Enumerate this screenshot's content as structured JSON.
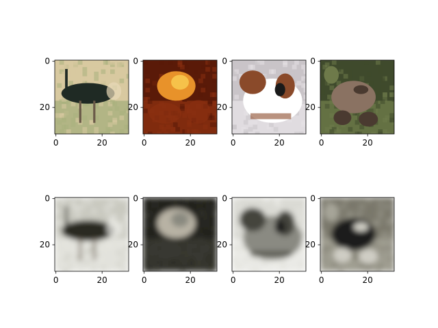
{
  "chart_data": {
    "type": "image-grid",
    "rows": 2,
    "cols": 4,
    "axes": {
      "xlim": [
        -0.5,
        31.5
      ],
      "ylim": [
        31.5,
        -0.5
      ],
      "xticks": [
        0,
        20
      ],
      "yticks": [
        0,
        20
      ],
      "xtick_labels": [
        "0",
        "20"
      ],
      "ytick_labels": [
        "0",
        "20"
      ]
    },
    "panels": [
      {
        "row": 0,
        "col": 0,
        "kind": "original",
        "subject": "ostrich",
        "palette": {
          "bg": "#d8c9a0",
          "bg2": "#a9b07e",
          "body": "#1f2a24",
          "accent": "#e8d8b8"
        }
      },
      {
        "row": 0,
        "col": 1,
        "kind": "original",
        "subject": "flower",
        "palette": {
          "bg": "#5a1a08",
          "bg2": "#8a2f10",
          "body": "#e8922a",
          "accent": "#f6c24a"
        }
      },
      {
        "row": 0,
        "col": 2,
        "kind": "original",
        "subject": "dog",
        "palette": {
          "bg": "#c9c4c8",
          "bg2": "#e6e2e6",
          "body": "#8a4a2a",
          "accent": "#ffffff"
        }
      },
      {
        "row": 0,
        "col": 3,
        "kind": "original",
        "subject": "frog",
        "palette": {
          "bg": "#3f4a2c",
          "bg2": "#6e7a4a",
          "body": "#8a7262",
          "accent": "#4a3a30"
        }
      },
      {
        "row": 1,
        "col": 0,
        "kind": "reconstruction",
        "subject": "ostrich",
        "palette": {
          "bg": "#c9c9c0",
          "bg2": "#e8e8e2",
          "body": "#2a2a24",
          "accent": "#f2f2ee"
        }
      },
      {
        "row": 1,
        "col": 1,
        "kind": "reconstruction",
        "subject": "flower",
        "palette": {
          "bg": "#22221e",
          "bg2": "#3a3a32",
          "body": "#b8b2a4",
          "accent": "#8a8a80"
        }
      },
      {
        "row": 1,
        "col": 2,
        "kind": "reconstruction",
        "subject": "dog",
        "palette": {
          "bg": "#dadad4",
          "bg2": "#eeeeea",
          "body": "#44443c",
          "accent": "#8a8a82"
        }
      },
      {
        "row": 1,
        "col": 3,
        "kind": "reconstruction",
        "subject": "frog",
        "palette": {
          "bg": "#7a786c",
          "bg2": "#a6a498",
          "body": "#1e1e1a",
          "accent": "#cfcdc4"
        }
      }
    ]
  }
}
